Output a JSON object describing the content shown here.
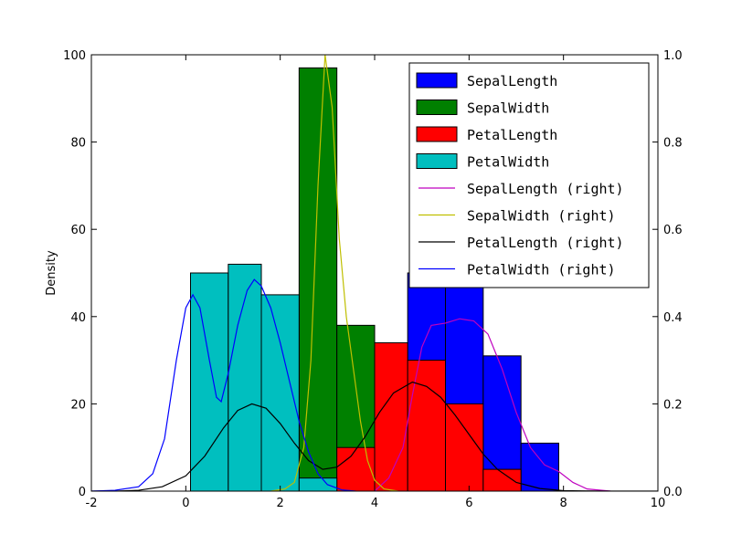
{
  "chart_data": {
    "type": "bar",
    "ylabel": "Density",
    "xlim": [
      -2,
      10
    ],
    "ylim_left": [
      0,
      100
    ],
    "ylim_right": [
      0,
      1.0
    ],
    "x_ticks": [
      "-2",
      "0",
      "2",
      "4",
      "6",
      "8",
      "10"
    ],
    "y_ticks_left": [
      "0",
      "20",
      "40",
      "60",
      "80",
      "100"
    ],
    "y_ticks_right": [
      "0.0",
      "0.2",
      "0.4",
      "0.6",
      "0.8",
      "1.0"
    ],
    "legend_position": "top-right",
    "histograms": [
      {
        "name": "SepalLength",
        "color": "#0000ff",
        "bars": [
          {
            "x0": 4.7,
            "x1": 5.5,
            "value": 50
          },
          {
            "x0": 5.5,
            "x1": 6.3,
            "value": 48
          },
          {
            "x0": 6.3,
            "x1": 7.1,
            "value": 31
          },
          {
            "x0": 7.1,
            "x1": 7.9,
            "value": 11
          }
        ]
      },
      {
        "name": "SepalWidth",
        "color": "#008000",
        "bars": [
          {
            "x0": 2.4,
            "x1": 3.2,
            "value": 97
          },
          {
            "x0": 3.2,
            "x1": 4.0,
            "value": 38
          }
        ]
      },
      {
        "name": "PetalLength",
        "color": "#ff0000",
        "bars": [
          {
            "x0": 3.2,
            "x1": 4.0,
            "value": 10
          },
          {
            "x0": 4.0,
            "x1": 4.7,
            "value": 34
          },
          {
            "x0": 4.7,
            "x1": 5.5,
            "value": 30
          },
          {
            "x0": 5.5,
            "x1": 6.3,
            "value": 20
          },
          {
            "x0": 6.3,
            "x1": 7.1,
            "value": 5
          }
        ]
      },
      {
        "name": "PetalWidth",
        "color": "#00bfbf",
        "bars": [
          {
            "x0": 0.1,
            "x1": 0.9,
            "value": 50
          },
          {
            "x0": 0.9,
            "x1": 1.6,
            "value": 52
          },
          {
            "x0": 1.6,
            "x1": 2.4,
            "value": 45
          },
          {
            "x0": 2.4,
            "x1": 3.2,
            "value": 3
          }
        ]
      }
    ],
    "density_lines": [
      {
        "name": "SepalLength (right)",
        "color": "#bf00bf",
        "points": [
          [
            4.0,
            0
          ],
          [
            4.3,
            0.03
          ],
          [
            4.6,
            0.1
          ],
          [
            4.8,
            0.22
          ],
          [
            5.0,
            0.33
          ],
          [
            5.2,
            0.38
          ],
          [
            5.5,
            0.385
          ],
          [
            5.8,
            0.395
          ],
          [
            6.1,
            0.39
          ],
          [
            6.4,
            0.36
          ],
          [
            6.7,
            0.28
          ],
          [
            7.0,
            0.18
          ],
          [
            7.3,
            0.1
          ],
          [
            7.6,
            0.06
          ],
          [
            7.9,
            0.045
          ],
          [
            8.2,
            0.02
          ],
          [
            8.5,
            0.005
          ],
          [
            9.0,
            0
          ]
        ]
      },
      {
        "name": "SepalWidth (right)",
        "color": "#bfbf00",
        "points": [
          [
            1.8,
            0
          ],
          [
            2.1,
            0.005
          ],
          [
            2.3,
            0.02
          ],
          [
            2.5,
            0.1
          ],
          [
            2.65,
            0.3
          ],
          [
            2.8,
            0.7
          ],
          [
            2.95,
            1.0
          ],
          [
            3.1,
            0.88
          ],
          [
            3.25,
            0.58
          ],
          [
            3.4,
            0.4
          ],
          [
            3.55,
            0.28
          ],
          [
            3.7,
            0.16
          ],
          [
            3.85,
            0.07
          ],
          [
            4.0,
            0.025
          ],
          [
            4.2,
            0.005
          ],
          [
            4.5,
            0
          ]
        ]
      },
      {
        "name": "PetalLength (right)",
        "color": "#000000",
        "points": [
          [
            -2,
            0
          ],
          [
            -1.5,
            0
          ],
          [
            -1.0,
            0.002
          ],
          [
            -0.5,
            0.01
          ],
          [
            0,
            0.035
          ],
          [
            0.4,
            0.08
          ],
          [
            0.8,
            0.145
          ],
          [
            1.1,
            0.185
          ],
          [
            1.4,
            0.2
          ],
          [
            1.7,
            0.19
          ],
          [
            2.0,
            0.155
          ],
          [
            2.3,
            0.11
          ],
          [
            2.6,
            0.07
          ],
          [
            2.9,
            0.05
          ],
          [
            3.2,
            0.055
          ],
          [
            3.5,
            0.08
          ],
          [
            3.8,
            0.125
          ],
          [
            4.1,
            0.18
          ],
          [
            4.4,
            0.225
          ],
          [
            4.8,
            0.25
          ],
          [
            5.1,
            0.24
          ],
          [
            5.4,
            0.215
          ],
          [
            5.7,
            0.175
          ],
          [
            6.0,
            0.13
          ],
          [
            6.3,
            0.085
          ],
          [
            6.6,
            0.05
          ],
          [
            7.0,
            0.02
          ],
          [
            7.5,
            0.006
          ],
          [
            8.0,
            0.001
          ],
          [
            9.0,
            0
          ],
          [
            10,
            0
          ]
        ]
      },
      {
        "name": "PetalWidth (right)",
        "color": "#0000ff",
        "points": [
          [
            -2,
            0
          ],
          [
            -1.5,
            0.002
          ],
          [
            -1.0,
            0.01
          ],
          [
            -0.7,
            0.04
          ],
          [
            -0.45,
            0.12
          ],
          [
            -0.2,
            0.3
          ],
          [
            0,
            0.42
          ],
          [
            0.15,
            0.45
          ],
          [
            0.3,
            0.42
          ],
          [
            0.5,
            0.3
          ],
          [
            0.65,
            0.215
          ],
          [
            0.75,
            0.205
          ],
          [
            0.9,
            0.27
          ],
          [
            1.1,
            0.38
          ],
          [
            1.3,
            0.46
          ],
          [
            1.45,
            0.485
          ],
          [
            1.6,
            0.47
          ],
          [
            1.8,
            0.42
          ],
          [
            2.0,
            0.34
          ],
          [
            2.2,
            0.25
          ],
          [
            2.4,
            0.16
          ],
          [
            2.6,
            0.09
          ],
          [
            2.8,
            0.04
          ],
          [
            3.0,
            0.015
          ],
          [
            3.3,
            0.003
          ],
          [
            3.6,
            0
          ]
        ]
      }
    ]
  }
}
